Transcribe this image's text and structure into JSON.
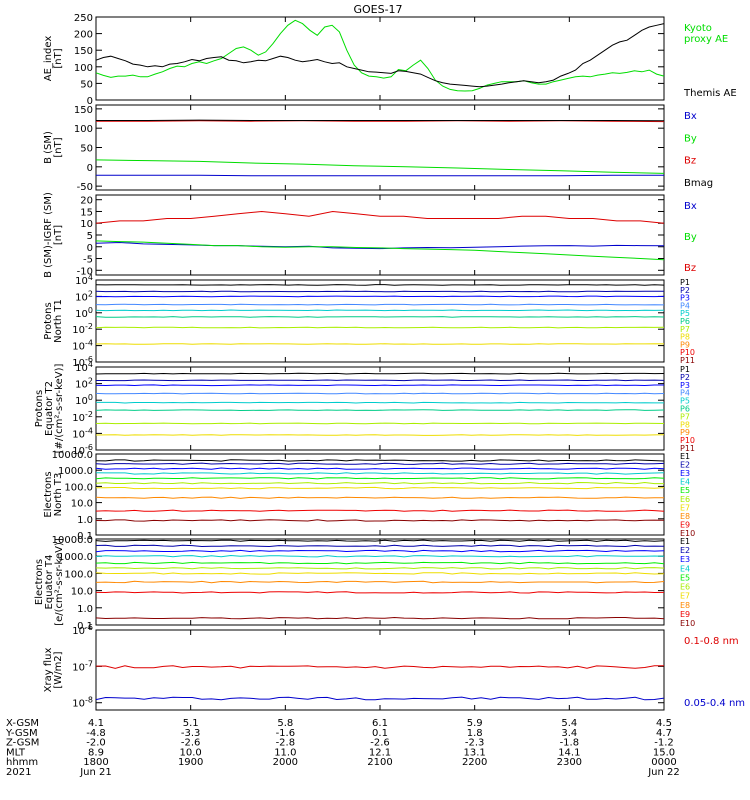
{
  "title": "GOES-17",
  "colors": {
    "black": "#000000",
    "green": "#00dd00",
    "red": "#dd0000",
    "blue": "#0000cc",
    "darkred": "#880000"
  },
  "chart_data": [
    {
      "type": "line",
      "ylabel": [
        "AE_index",
        "[nT]"
      ],
      "ylim": [
        0,
        250
      ],
      "yticks": [
        "250",
        "200",
        "150",
        "100",
        "50",
        "0"
      ],
      "ytick_values": [
        250,
        200,
        150,
        100,
        50,
        0
      ],
      "series": [
        {
          "name": "Kyoto proxy AE",
          "legend": [
            "Kyoto",
            "proxy AE"
          ],
          "color": "#00dd00",
          "values": [
            82,
            74,
            68,
            72,
            72,
            75,
            70,
            70,
            78,
            85,
            95,
            102,
            100,
            110,
            115,
            110,
            118,
            125,
            140,
            155,
            160,
            150,
            135,
            145,
            170,
            200,
            225,
            240,
            230,
            210,
            195,
            220,
            225,
            205,
            150,
            105,
            82,
            72,
            70,
            66,
            70,
            92,
            88,
            105,
            120,
            95,
            60,
            42,
            32,
            28,
            27,
            28,
            35,
            45,
            50,
            55,
            55,
            55,
            58,
            52,
            48,
            48,
            55,
            60,
            65,
            70,
            72,
            70,
            75,
            78,
            82,
            80,
            83,
            88,
            85,
            90,
            78,
            72
          ]
        },
        {
          "name": "Themis AE",
          "legend": [
            "Themis AE"
          ],
          "color": "#000000",
          "values": [
            120,
            128,
            132,
            125,
            118,
            108,
            105,
            100,
            103,
            100,
            108,
            110,
            115,
            122,
            118,
            125,
            128,
            130,
            120,
            118,
            112,
            115,
            120,
            118,
            125,
            132,
            128,
            120,
            115,
            118,
            122,
            115,
            110,
            112,
            100,
            95,
            90,
            85,
            84,
            82,
            80,
            88,
            86,
            82,
            78,
            68,
            58,
            52,
            48,
            46,
            44,
            42,
            40,
            42,
            45,
            48,
            52,
            55,
            58,
            55,
            52,
            55,
            60,
            72,
            80,
            90,
            110,
            120,
            135,
            150,
            165,
            175,
            180,
            195,
            210,
            220,
            225,
            230
          ]
        }
      ]
    },
    {
      "type": "line",
      "ylabel": [
        "B (SM)",
        "[nT]"
      ],
      "ylim": [
        -60,
        160
      ],
      "yticks": [
        "150",
        "100",
        "50",
        "0",
        "-50"
      ],
      "ytick_values": [
        150,
        100,
        50,
        0,
        -50
      ],
      "series": [
        {
          "name": "Bx",
          "color": "#0000cc",
          "values": [
            -22,
            -22,
            -22,
            -23,
            -23,
            -23,
            -23,
            -23,
            -23,
            -23,
            -22,
            -22
          ]
        },
        {
          "name": "By",
          "color": "#00dd00",
          "values": [
            18,
            16,
            14,
            10,
            7,
            3,
            0,
            -3,
            -7,
            -10,
            -14,
            -17
          ]
        },
        {
          "name": "Bz",
          "color": "#dd0000",
          "values": [
            118,
            118,
            119,
            118,
            119,
            118,
            118,
            119,
            118,
            119,
            118,
            117
          ]
        },
        {
          "name": "Bmag",
          "color": "#000000",
          "values": [
            120,
            120,
            121,
            120,
            120,
            120,
            120,
            120,
            120,
            120,
            120,
            119
          ]
        }
      ]
    },
    {
      "type": "line",
      "ylabel": [
        "B (SM)-IGRF (SM)",
        "[nT]"
      ],
      "ylim": [
        -12,
        22
      ],
      "yticks": [
        "20",
        "15",
        "10",
        "5",
        "0",
        "-5",
        "-10"
      ],
      "ytick_values": [
        20,
        15,
        10,
        5,
        0,
        -5,
        -10
      ],
      "series": [
        {
          "name": "Bx",
          "color": "#0000cc",
          "values": [
            1.5,
            1.8,
            1.2,
            1.0,
            0.8,
            0.5,
            0.5,
            0.2,
            0.0,
            0.2,
            -0.5,
            -0.6,
            -0.8,
            -0.5,
            -0.3,
            -0.4,
            -0.2,
            0.0,
            0.3,
            0.4,
            0.5,
            0.3,
            0.6,
            0.5,
            0.4
          ]
        },
        {
          "name": "By",
          "color": "#00dd00",
          "values": [
            2.5,
            2.2,
            2.0,
            1.5,
            1.0,
            0.5,
            0.5,
            0.0,
            -0.2,
            0.0,
            0.0,
            -0.3,
            -0.5,
            -0.8,
            -1.0,
            -1.2,
            -1.5,
            -2.0,
            -2.5,
            -3.0,
            -3.5,
            -4.0,
            -4.5,
            -5.0,
            -5.5
          ]
        },
        {
          "name": "Bz",
          "color": "#dd0000",
          "values": [
            10,
            11,
            11,
            12,
            12,
            13,
            14,
            15,
            14,
            13,
            15,
            14,
            13,
            13,
            12,
            12,
            12,
            12,
            13,
            13,
            12,
            12,
            11,
            11,
            10
          ]
        }
      ]
    },
    {
      "type": "line",
      "ylabel": [
        "Protons",
        "North T1"
      ],
      "scale": "log",
      "ylim": [
        -6,
        4
      ],
      "yticks": [
        "10^4",
        "10^2",
        "10^0",
        "10^-2",
        "10^-4",
        "10^-6"
      ],
      "ytick_values": [
        4,
        2,
        0,
        -2,
        -4,
        -6
      ],
      "channel_colors": [
        "#000000",
        "#0000aa",
        "#0000ff",
        "#4488ff",
        "#00cccc",
        "#00cc88",
        "#00ee00",
        "#aaee00",
        "#eedd00",
        "#ff8800",
        "#ee0000"
      ],
      "series": [
        {
          "name": "P1",
          "color": "#000000",
          "level": 3.4
        },
        {
          "name": "P2",
          "color": "#0000aa",
          "level": 2.6
        },
        {
          "name": "P3",
          "color": "#0000ff",
          "level": 2.0
        },
        {
          "name": "P4",
          "color": "#4488ff",
          "level": 1.0
        },
        {
          "name": "P5",
          "color": "#00cccc",
          "level": 0.3
        },
        {
          "name": "P6",
          "color": "#00cc88",
          "level": -0.5
        },
        {
          "name": "P7",
          "color": "#aaee00",
          "level": -1.8
        },
        {
          "name": "P8",
          "color": "#eedd00",
          "level": -3.8
        },
        {
          "name": "P9",
          "color": "#ff8800",
          "level": null
        },
        {
          "name": "P10",
          "color": "#ee0000",
          "level": null
        },
        {
          "name": "P11",
          "color": "#880000",
          "level": null
        }
      ]
    },
    {
      "type": "line",
      "ylabel": [
        "Protons",
        "Equator T2",
        "[#/(cm²-s-sr-keV)]"
      ],
      "scale": "log",
      "ylim": [
        -6,
        4
      ],
      "yticks": [
        "10^4",
        "10^2",
        "10^0",
        "10^-2",
        "10^-4",
        "10^-6"
      ],
      "ytick_values": [
        4,
        2,
        0,
        -2,
        -4,
        -6
      ],
      "series": [
        {
          "name": "P1",
          "color": "#000000",
          "level": 3.2
        },
        {
          "name": "P2",
          "color": "#0000aa",
          "level": 2.4
        },
        {
          "name": "P3",
          "color": "#0000ff",
          "level": 1.8
        },
        {
          "name": "P4",
          "color": "#4488ff",
          "level": 0.8
        },
        {
          "name": "P5",
          "color": "#00cccc",
          "level": -0.3
        },
        {
          "name": "P6",
          "color": "#00cc88",
          "level": -1.2
        },
        {
          "name": "P7",
          "color": "#aaee00",
          "level": -2.8
        },
        {
          "name": "P8",
          "color": "#eedd00",
          "level": -4.2
        },
        {
          "name": "P9",
          "color": "#ff8800",
          "level": null
        },
        {
          "name": "P10",
          "color": "#ee0000",
          "level": null
        },
        {
          "name": "P11",
          "color": "#880000",
          "level": null
        }
      ]
    },
    {
      "type": "line",
      "ylabel": [
        "Electrons",
        "North T3"
      ],
      "scale": "log",
      "ylim": [
        -1,
        4
      ],
      "yticks": [
        "10000.0",
        "1000.0",
        "100.0",
        "10.0",
        "1.0",
        "0.1"
      ],
      "ytick_values": [
        4,
        3,
        2,
        1,
        0,
        -1
      ],
      "series": [
        {
          "name": "E1",
          "color": "#000000",
          "level": 3.6
        },
        {
          "name": "E2",
          "color": "#0000aa",
          "level": 3.4
        },
        {
          "name": "E3",
          "color": "#0000ff",
          "level": 3.1
        },
        {
          "name": "E4",
          "color": "#00cccc",
          "level": 2.8
        },
        {
          "name": "E5",
          "color": "#00ee00",
          "level": 2.5
        },
        {
          "name": "E6",
          "color": "#aaee00",
          "level": 2.2
        },
        {
          "name": "E7",
          "color": "#eedd00",
          "level": 1.9
        },
        {
          "name": "E8",
          "color": "#ff8800",
          "level": 1.3
        },
        {
          "name": "E9",
          "color": "#ee0000",
          "level": 0.5
        },
        {
          "name": "E10",
          "color": "#880000",
          "level": -0.1
        }
      ]
    },
    {
      "type": "line",
      "ylabel": [
        "Electrons",
        "Equator T4",
        "[e/(cm²-s-sr-keV)]"
      ],
      "scale": "log",
      "ylim": [
        -1,
        4
      ],
      "yticks": [
        "10000.0",
        "1000.0",
        "100.0",
        "10.0",
        "1.0",
        "0.1"
      ],
      "ytick_values": [
        4,
        3,
        2,
        1,
        0,
        -1
      ],
      "series": [
        {
          "name": "E1",
          "color": "#000000",
          "level": 3.9
        },
        {
          "name": "E2",
          "color": "#0000aa",
          "level": 3.6
        },
        {
          "name": "E3",
          "color": "#0000ff",
          "level": 3.3
        },
        {
          "name": "E4",
          "color": "#00cccc",
          "level": 3.0
        },
        {
          "name": "E5",
          "color": "#00ee00",
          "level": 2.6
        },
        {
          "name": "E6",
          "color": "#aaee00",
          "level": 2.3
        },
        {
          "name": "E7",
          "color": "#eedd00",
          "level": 2.0
        },
        {
          "name": "E8",
          "color": "#ff8800",
          "level": 1.5
        },
        {
          "name": "E9",
          "color": "#ee0000",
          "level": 0.9
        },
        {
          "name": "E10",
          "color": "#880000",
          "level": -0.6
        }
      ]
    },
    {
      "type": "line",
      "ylabel": [
        "Xray flux",
        "[W/m2]"
      ],
      "scale": "log",
      "ylim": [
        -8.2,
        -6
      ],
      "yticks": [
        "10^-6",
        "10^-7",
        "10^-8"
      ],
      "ytick_values": [
        -6,
        -7,
        -8
      ],
      "series": [
        {
          "name": "0.1-0.8 nm",
          "color": "#dd0000",
          "level": -7.02
        },
        {
          "name": "0.05-0.4 nm",
          "color": "#0000cc",
          "level": -7.88
        }
      ]
    }
  ],
  "footer": {
    "rows": [
      {
        "label": "X-GSM",
        "values": [
          "4.1",
          "5.1",
          "5.8",
          "6.1",
          "5.9",
          "5.4",
          "4.5"
        ]
      },
      {
        "label": "Y-GSM",
        "values": [
          "-4.8",
          "-3.3",
          "-1.6",
          "0.1",
          "1.8",
          "3.4",
          "4.7"
        ]
      },
      {
        "label": "Z-GSM",
        "values": [
          "-2.0",
          "-2.6",
          "-2.8",
          "-2.6",
          "-2.3",
          "-1.8",
          "-1.2"
        ]
      },
      {
        "label": "MLT",
        "values": [
          "8.9",
          "10.0",
          "11.0",
          "12.1",
          "13.1",
          "14.1",
          "15.0"
        ]
      },
      {
        "label": "hhmm",
        "values": [
          "1800",
          "1900",
          "2000",
          "2100",
          "2200",
          "2300",
          "0000"
        ]
      },
      {
        "label": "2021",
        "values": [
          "Jun 21",
          "",
          "",
          "",
          "",
          "",
          "Jun 22"
        ]
      }
    ]
  }
}
